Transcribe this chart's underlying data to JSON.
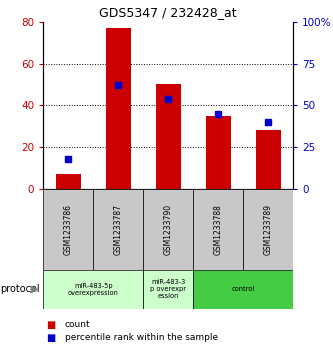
{
  "title": "GDS5347 / 232428_at",
  "samples": [
    "GSM1233786",
    "GSM1233787",
    "GSM1233790",
    "GSM1233788",
    "GSM1233789"
  ],
  "counts": [
    7,
    77,
    50,
    35,
    28
  ],
  "percentile_ranks": [
    18,
    62,
    54,
    45,
    40
  ],
  "ylim_left": [
    0,
    80
  ],
  "ylim_right": [
    0,
    100
  ],
  "yticks_left": [
    0,
    20,
    40,
    60,
    80
  ],
  "yticks_right": [
    0,
    25,
    50,
    75,
    100
  ],
  "bar_color": "#cc0000",
  "marker_color": "#0000cc",
  "background_color": "#ffffff",
  "grid_lines": [
    20,
    40,
    60
  ],
  "group_defs": [
    {
      "xstart": 0,
      "xend": 2,
      "label": "miR-483-5p\noverexpression",
      "color": "#ccffcc"
    },
    {
      "xstart": 2,
      "xend": 3,
      "label": "miR-483-3\np overexpr\nession",
      "color": "#ccffcc"
    },
    {
      "xstart": 3,
      "xend": 5,
      "label": "control",
      "color": "#44cc44"
    }
  ],
  "legend_count_label": "count",
  "legend_percentile_label": "percentile rank within the sample",
  "protocol_label": "protocol",
  "gray_color": "#c8c8c8"
}
